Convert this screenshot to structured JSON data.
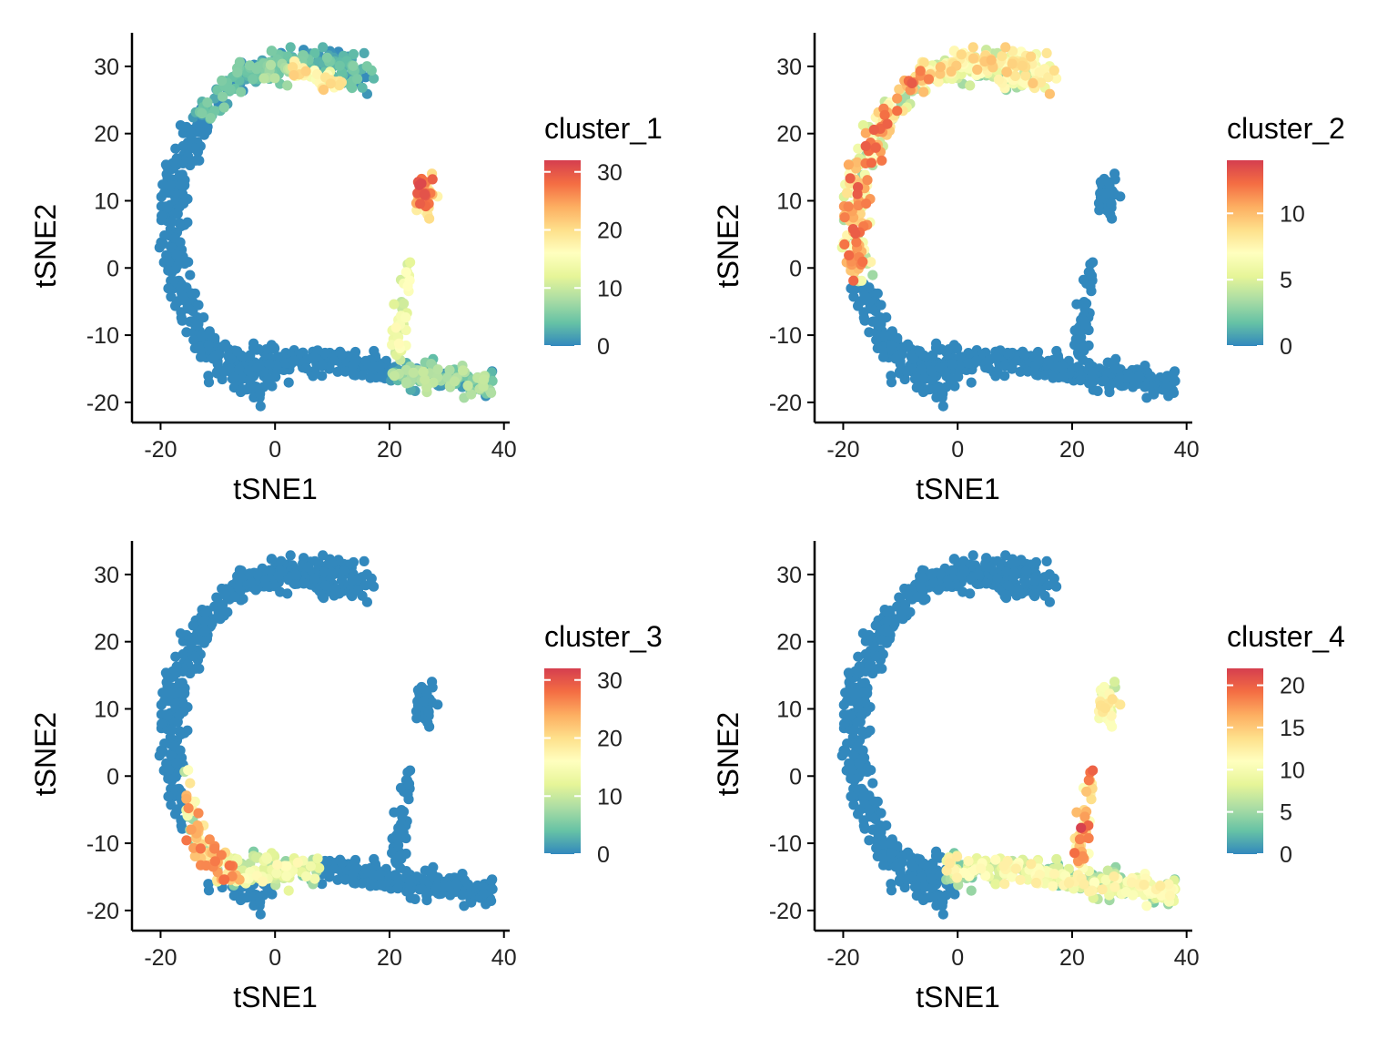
{
  "figure": {
    "description_layout": "2x2 grid of t-SNE feature plots",
    "colorscale": [
      "#3288BD",
      "#66C2A5",
      "#ABDDA4",
      "#E6F598",
      "#FFFFBF",
      "#FEE08B",
      "#FDAE61",
      "#F46D43",
      "#D53E4F"
    ]
  },
  "chart_data": [
    {
      "type": "scatter",
      "xlabel": "tSNE1",
      "ylabel": "tSNE2",
      "xlim": [
        -25,
        41
      ],
      "ylim": [
        -23,
        35
      ],
      "xticks": [
        -20,
        0,
        20,
        40
      ],
      "yticks": [
        -20,
        -10,
        0,
        10,
        20,
        30
      ],
      "xtick_labels": [
        "-20",
        "0",
        "20",
        "40"
      ],
      "ytick_labels": [
        "-20",
        "-10",
        "0",
        "10",
        "20",
        "30"
      ],
      "legend": {
        "title": "cluster_1",
        "range": [
          0,
          32
        ],
        "ticks": [
          0,
          10,
          20,
          30
        ],
        "tick_labels": [
          "0",
          "10",
          "20",
          "30"
        ],
        "position": "right"
      },
      "highlight_region": "cluster-1 cells (right cluster, top of arm, upper-left tip)",
      "points_x": [
        -21,
        -18,
        -15,
        -12,
        -10,
        -8,
        0,
        5,
        10,
        15,
        20,
        25,
        30,
        35,
        25,
        26,
        27,
        24,
        22,
        23,
        25,
        28,
        4,
        6,
        8,
        10,
        11
      ],
      "points_y": [
        10,
        0,
        -5,
        15,
        20,
        25,
        28,
        31,
        29,
        28,
        -14,
        -17,
        -18,
        -17,
        15,
        12,
        10,
        9,
        11,
        8,
        6,
        13,
        29,
        28,
        27,
        27,
        28
      ],
      "points_v": [
        0,
        0,
        0,
        0,
        0,
        2,
        6,
        12,
        14,
        15,
        10,
        6,
        5,
        4,
        25,
        28,
        20,
        18,
        22,
        16,
        14,
        30,
        12,
        14,
        16,
        18,
        24
      ]
    },
    {
      "type": "scatter",
      "xlabel": "tSNE1",
      "ylabel": "tSNE2",
      "xlim": [
        -25,
        41
      ],
      "ylim": [
        -23,
        35
      ],
      "xticks": [
        -20,
        0,
        20,
        40
      ],
      "yticks": [
        -20,
        -10,
        0,
        10,
        20,
        30
      ],
      "xtick_labels": [
        "-20",
        "0",
        "20",
        "40"
      ],
      "ytick_labels": [
        "-20",
        "-10",
        "0",
        "10",
        "20",
        "30"
      ],
      "legend": {
        "title": "cluster_2",
        "range": [
          0,
          14
        ],
        "ticks": [
          0,
          5,
          10
        ],
        "tick_labels": [
          "0",
          "5",
          "10"
        ],
        "position": "right"
      },
      "highlight_region": "cluster-2 cells (upper-left arm)",
      "points_x": [
        -20,
        -18,
        -16,
        -14,
        -12,
        -10,
        -8,
        -6
      ],
      "points_y": [
        10,
        15,
        12,
        18,
        20,
        22,
        18,
        25
      ],
      "points_v": [
        6,
        8,
        10,
        12,
        9,
        7,
        10,
        5
      ]
    },
    {
      "type": "scatter",
      "xlabel": "tSNE1",
      "ylabel": "tSNE2",
      "xlim": [
        -25,
        41
      ],
      "ylim": [
        -23,
        35
      ],
      "xticks": [
        -20,
        0,
        20,
        40
      ],
      "yticks": [
        -20,
        -10,
        0,
        10,
        20,
        30
      ],
      "xtick_labels": [
        "-20",
        "0",
        "20",
        "40"
      ],
      "ytick_labels": [
        "-20",
        "-10",
        "0",
        "10",
        "20",
        "30"
      ],
      "legend": {
        "title": "cluster_3",
        "range": [
          0,
          32
        ],
        "ticks": [
          0,
          10,
          20,
          30
        ],
        "tick_labels": [
          "0",
          "10",
          "20",
          "30"
        ],
        "position": "right"
      },
      "highlight_region": "cluster-3 cells (lower-left bend)",
      "points_x": [
        -12,
        -10,
        -8,
        -6,
        -4,
        -2,
        0,
        2,
        4,
        6
      ],
      "points_y": [
        -5,
        -8,
        -10,
        -11,
        -12,
        -13,
        -14,
        -15,
        -15,
        -16
      ],
      "points_v": [
        10,
        18,
        28,
        22,
        16,
        14,
        10,
        8,
        6,
        4
      ]
    },
    {
      "type": "scatter",
      "xlabel": "tSNE1",
      "ylabel": "tSNE2",
      "xlim": [
        -25,
        41
      ],
      "ylim": [
        -23,
        35
      ],
      "xticks": [
        -20,
        0,
        20,
        40
      ],
      "yticks": [
        -20,
        -10,
        0,
        10,
        20,
        30
      ],
      "xtick_labels": [
        "-20",
        "0",
        "20",
        "40"
      ],
      "ytick_labels": [
        "-20",
        "-10",
        "0",
        "10",
        "20",
        "30"
      ],
      "legend": {
        "title": "cluster_4",
        "range": [
          0,
          22
        ],
        "ticks": [
          0,
          5,
          10,
          15,
          20
        ],
        "tick_labels": [
          "0",
          "5",
          "10",
          "15",
          "20"
        ],
        "position": "right"
      },
      "highlight_region": "cluster-4 cells (bottom arm and right cluster)",
      "points_x": [
        0,
        5,
        10,
        15,
        20,
        22,
        25,
        28,
        30,
        35,
        24,
        25,
        26,
        27
      ],
      "points_y": [
        -14,
        -15,
        -15,
        -16,
        -10,
        -5,
        -17,
        -17,
        -17,
        -17,
        15,
        12,
        10,
        8
      ],
      "points_v": [
        6,
        8,
        10,
        12,
        20,
        16,
        10,
        9,
        8,
        6,
        10,
        11,
        9,
        12
      ]
    }
  ]
}
